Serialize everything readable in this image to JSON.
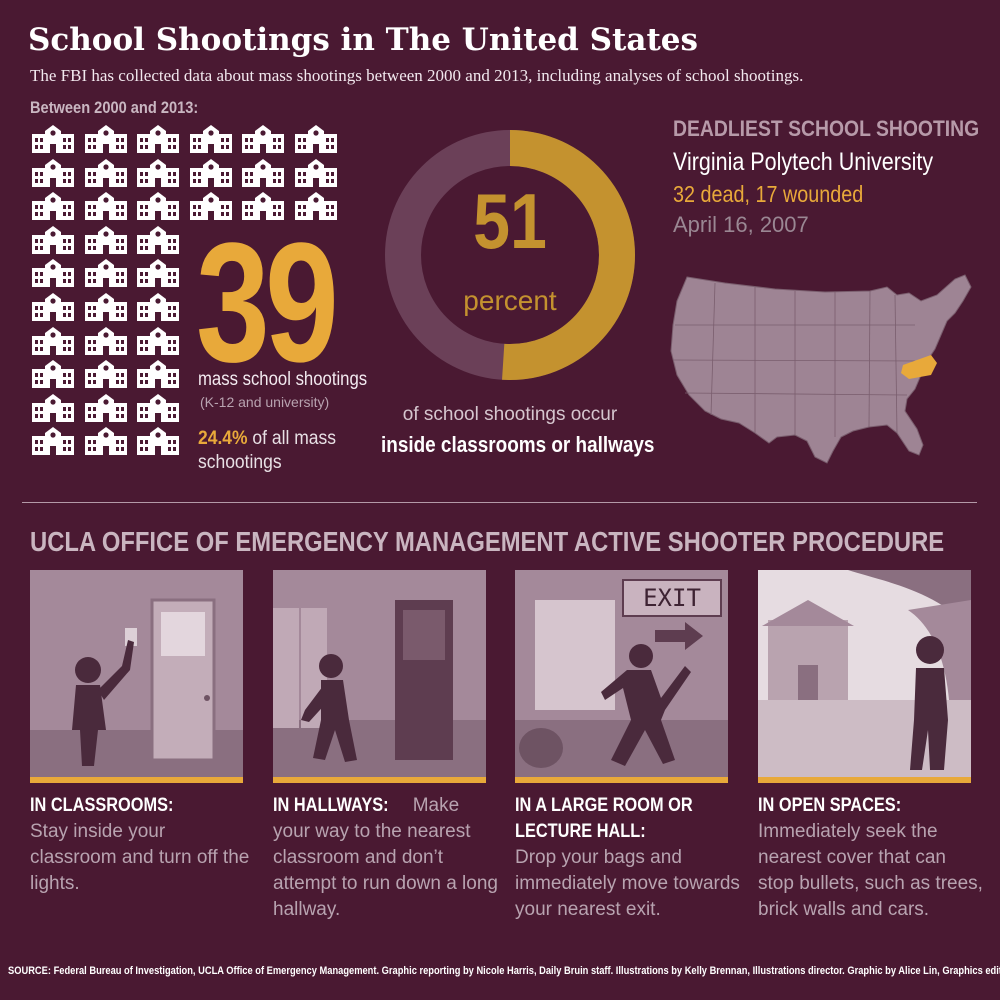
{
  "header": {
    "title": "School Shootings in The United States",
    "subtitle": "The FBI has collected data about mass shootings between 2000 and 2013, including analyses of school shootings."
  },
  "schools": {
    "heading": "Between 2000 and 2013:",
    "count": 39,
    "count_label": "39",
    "label": "mass school shootings",
    "sublabel": "(K-12 and university)",
    "percent_value": "24.4%",
    "percent_text": "of all mass",
    "percent_text2": "schootings",
    "icon": "school-building-icon"
  },
  "donut": {
    "value": 51,
    "value_label": "51",
    "unit": "percent",
    "line1": "of school shootings occur",
    "line2": "inside classrooms or hallways",
    "colors": {
      "fill": "#c4922f",
      "rest": "#6b4058"
    }
  },
  "deadliest": {
    "heading": "DEADLIEST SCHOOL SHOOTING",
    "place": "Virginia Polytech University",
    "casualties": "32 dead, 17 wounded",
    "date": "April 16, 2007",
    "map_highlight": "Virginia"
  },
  "procedure": {
    "title": "UCLA OFFICE OF EMERGENCY MANAGEMENT ACTIVE SHOOTER PROCEDURE",
    "exit_sign": "EXIT",
    "items": [
      {
        "heading": "IN CLASSROOMS:",
        "text": "Stay inside your classroom and turn off the lights."
      },
      {
        "heading": "IN HALLWAYS:",
        "text": "Make your way to the nearest classroom and don’t attempt to run down a long hallway."
      },
      {
        "heading": "IN A LARGE ROOM OR LECTURE HALL:",
        "text": "Drop your bags and immediately move towards your nearest exit."
      },
      {
        "heading": "IN OPEN SPACES:",
        "text": "Immediately seek the nearest cover that can stop bullets, such as trees, brick walls and cars."
      }
    ]
  },
  "source": "SOURCE: Federal Bureau of Investigation, UCLA Office of Emergency Management. Graphic reporting by Nicole Harris, Daily Bruin staff. Illustrations by Kelly Brennan, Illustrations director. Graphic by Alice Lin, Graphics editor.",
  "colors": {
    "background": "#4a1932",
    "accent": "#e8a93a",
    "muted": "#b8a3b0"
  }
}
